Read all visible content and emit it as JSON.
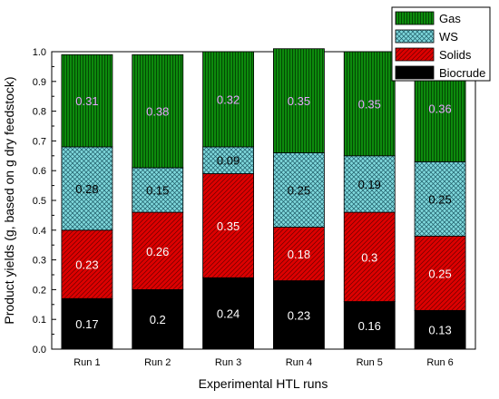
{
  "chart_data": {
    "type": "bar",
    "stacked": true,
    "categories": [
      "Run 1",
      "Run 2",
      "Run 3",
      "Run 4",
      "Run 5",
      "Run 6"
    ],
    "series": [
      {
        "name": "Biocrude",
        "values": [
          0.17,
          0.2,
          0.24,
          0.23,
          0.16,
          0.13
        ],
        "labels": [
          "0.17",
          "0.2",
          "0.24",
          "0.23",
          "0.16",
          "0.13"
        ],
        "color": "#000000",
        "label_color": "#ffffff",
        "pattern": "solid"
      },
      {
        "name": "Solids",
        "values": [
          0.23,
          0.26,
          0.35,
          0.18,
          0.3,
          0.25
        ],
        "labels": [
          "0.23",
          "0.26",
          "0.35",
          "0.18",
          "0.3",
          "0.25"
        ],
        "color": "#dd0000",
        "label_color": "#ffffff",
        "pattern": "diagonal-hatch"
      },
      {
        "name": "WS",
        "values": [
          0.28,
          0.15,
          0.09,
          0.25,
          0.19,
          0.25
        ],
        "labels": [
          "0.28",
          "0.15",
          "0.09",
          "0.25",
          "0.19",
          "0.25"
        ],
        "color": "#7fd8dc",
        "label_color": "#000000",
        "pattern": "crosshatch"
      },
      {
        "name": "Gas",
        "values": [
          0.31,
          0.38,
          0.32,
          0.35,
          0.35,
          0.36
        ],
        "labels": [
          "0.31",
          "0.38",
          "0.32",
          "0.35",
          "0.35",
          "0.36"
        ],
        "color": "#0d8a0d",
        "label_color": "#e6a6ff",
        "pattern": "vertical-lines"
      }
    ],
    "title": "",
    "xlabel": "Experimental HTL runs",
    "ylabel": "Product yields (g, based on g dry feedstock)",
    "ylim": [
      0,
      1.0
    ],
    "yticks": [
      "0.0",
      "0.1",
      "0.2",
      "0.3",
      "0.4",
      "0.5",
      "0.6",
      "0.7",
      "0.8",
      "0.9",
      "1.0"
    ],
    "legend_order": [
      "Gas",
      "WS",
      "Solids",
      "Biocrude"
    ],
    "legend_position": "top-right",
    "grid": false
  }
}
